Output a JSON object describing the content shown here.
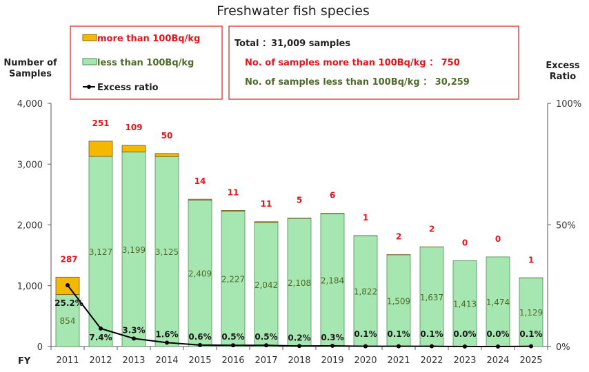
{
  "chart_data": {
    "type": "bar",
    "stacked": true,
    "title": "Freshwater fish species",
    "xlabel": "FY",
    "ylabel": "Number of Samples",
    "y2label": "Excess Ratio",
    "ylim": [
      0,
      4000
    ],
    "y2lim": [
      0,
      100
    ],
    "yticks": [
      "0",
      "1,000",
      "2,000",
      "3,000",
      "4,000"
    ],
    "y2ticks": [
      "0%",
      "50%",
      "100%"
    ],
    "categories": [
      "2011",
      "2012",
      "2013",
      "2014",
      "2015",
      "2016",
      "2017",
      "2018",
      "2019",
      "2020",
      "2021",
      "2022",
      "2023",
      "2024",
      "2025"
    ],
    "series": [
      {
        "name": "less than 100Bq/kg",
        "color": "#a6e6b0",
        "values": [
          854,
          3127,
          3199,
          3125,
          2409,
          2227,
          2042,
          2108,
          2184,
          1822,
          1509,
          1637,
          1413,
          1474,
          1129
        ]
      },
      {
        "name": "more than 100Bq/kg",
        "color": "#f5b800",
        "values": [
          287,
          251,
          109,
          50,
          14,
          11,
          11,
          5,
          6,
          1,
          2,
          2,
          0,
          0,
          1
        ]
      },
      {
        "name": "Excess ratio",
        "type": "line",
        "axis": "right",
        "color": "#000000",
        "values": [
          25.2,
          7.4,
          3.3,
          1.6,
          0.6,
          0.5,
          0.5,
          0.2,
          0.3,
          0.1,
          0.1,
          0.1,
          0.0,
          0.0,
          0.1
        ]
      }
    ],
    "less_labels": [
      "854",
      "3,127",
      "3,199",
      "3,125",
      "2,409",
      "2,227",
      "2,042",
      "2,108",
      "2,184",
      "1,822",
      "1,509",
      "1,637",
      "1,413",
      "1,474",
      "1,129"
    ],
    "ratio_labels": [
      "25.2%",
      "7.4%",
      "3.3%",
      "1.6%",
      "0.6%",
      "0.5%",
      "0.5%",
      "0.2%",
      "0.3%",
      "0.1%",
      "0.1%",
      "0.1%",
      "0.0%",
      "0.0%",
      "0.1%"
    ],
    "legend_position": "top-left",
    "grid": false
  },
  "legend": {
    "more": "more than 100Bq/kg",
    "less": "less than 100Bq/kg",
    "ratio": "Excess ratio"
  },
  "summary": {
    "total": "Total ：31,009 samples",
    "more": "No. of samples more than 100Bq/kg ：   750",
    "less": "No. of samples less than 100Bq/kg   ： 30,259",
    "more_color": "#e8141c",
    "less_color": "#4f6b2a"
  }
}
